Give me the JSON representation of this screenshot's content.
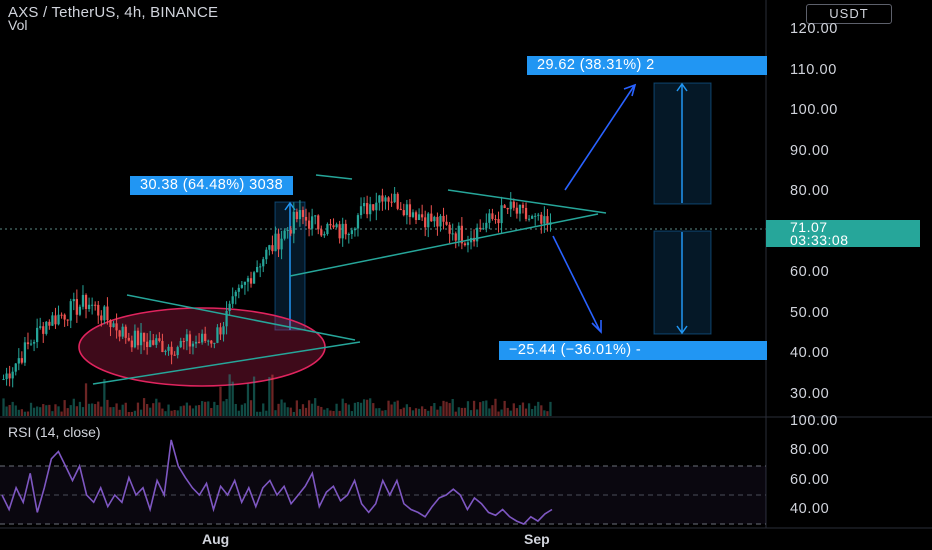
{
  "header": {
    "title": "AXS / TetherUS, 4h, BINANCE",
    "vol_label": "Vol",
    "currency_button": "USDT"
  },
  "current_price": {
    "price": "71.07",
    "countdown": "03:33:08"
  },
  "measurements": {
    "up_left": "30.38 (64.48%) 3038",
    "up_right": "29.62 (38.31%) 2",
    "down_right": "−25.44 (−36.01%) -"
  },
  "rsi": {
    "title": "RSI (14, close)"
  },
  "price_axis_labels": [
    "120.00",
    "110.00",
    "100.00",
    "90.00",
    "80.00",
    "70.00",
    "60.00",
    "50.00",
    "40.00",
    "30.00"
  ],
  "rsi_axis_labels": [
    "100.00",
    "80.00",
    "60.00",
    "40.00"
  ],
  "time_axis_labels": [
    "Aug",
    "Sep"
  ],
  "colors": {
    "background": "#000000",
    "up_candle": "#26a69a",
    "down_candle": "#ef5350",
    "measure_blue": "#2196f3",
    "rsi_line": "#7e57c2",
    "trendline": "#26a69a",
    "ellipse": "#e0245e"
  },
  "chart_data": [
    {
      "type": "candlestick",
      "title": "AXS / TetherUS, 4h, BINANCE",
      "ylim": [
        27,
        124
      ],
      "y_ticks": [
        30,
        40,
        50,
        60,
        70,
        80,
        90,
        100,
        110,
        120
      ],
      "x_tick_labels": [
        "Aug",
        "Sep"
      ],
      "current_price": 71.07,
      "approx_close_path": [
        {
          "t": "late Jul",
          "close": 34
        },
        {
          "t": "late Jul",
          "close": 48
        },
        {
          "t": "late Jul",
          "close": 53
        },
        {
          "t": "Aug",
          "close": 44
        },
        {
          "t": "mid Aug",
          "close": 42
        },
        {
          "t": "mid Aug",
          "close": 44
        },
        {
          "t": "mid Aug",
          "close": 62
        },
        {
          "t": "mid Aug",
          "close": 74
        },
        {
          "t": "late Aug",
          "close": 70
        },
        {
          "t": "late Aug",
          "close": 80
        },
        {
          "t": "late Aug",
          "close": 74
        },
        {
          "t": "late Aug",
          "close": 69
        },
        {
          "t": "late Aug",
          "close": 76
        },
        {
          "t": "Sep",
          "close": 71
        }
      ],
      "annotations": [
        "30.38 (64.48%) 3038",
        "29.62 (38.31%) 2",
        "−25.44 (−36.01%) -"
      ]
    },
    {
      "type": "line",
      "title": "RSI (14, close)",
      "ylim": [
        30,
        100
      ],
      "y_ticks": [
        40,
        60,
        80,
        100
      ],
      "band": [
        30,
        70
      ],
      "series": [
        {
          "name": "RSI (14, close)",
          "values": [
            50,
            40,
            55,
            45,
            65,
            38,
            55,
            75,
            80,
            70,
            60,
            70,
            50,
            45,
            55,
            42,
            50,
            45,
            62,
            50,
            55,
            40,
            60,
            50,
            88,
            70,
            62,
            55,
            50,
            58,
            40,
            56,
            50,
            60,
            45,
            55,
            42,
            55,
            60,
            50,
            56,
            44,
            50,
            56,
            65,
            42,
            52,
            56,
            46,
            50,
            60,
            44,
            38,
            44,
            60,
            50,
            60,
            44,
            40,
            38,
            35,
            42,
            48,
            50,
            54,
            50,
            40,
            48,
            44,
            38,
            36,
            40,
            35,
            32,
            30,
            35,
            32,
            37,
            40
          ]
        }
      ]
    }
  ]
}
